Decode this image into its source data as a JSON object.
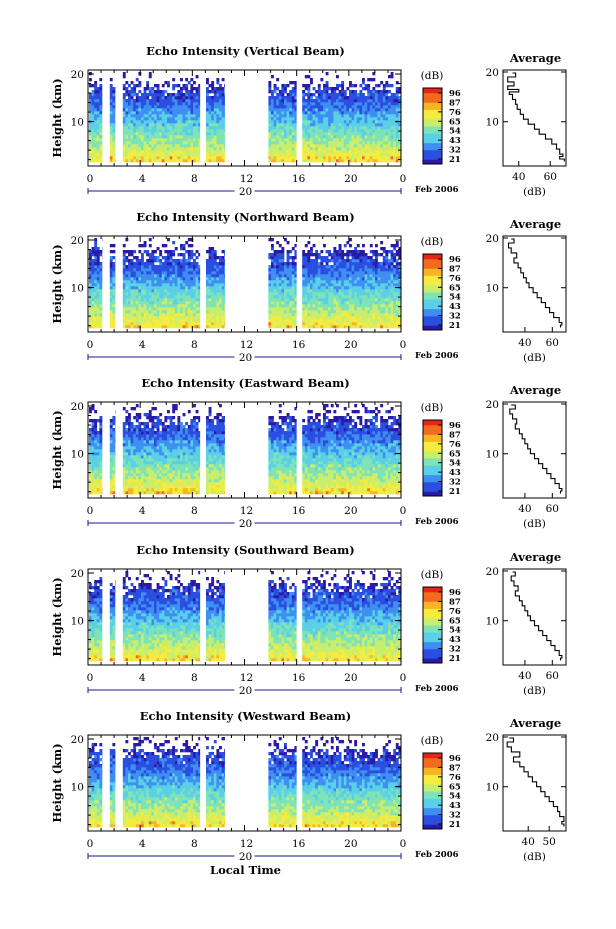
{
  "chart_data": [
    {
      "type": "heatmap",
      "title": "Echo Intensity (Vertical Beam)",
      "ylabel": "Height (km)",
      "yticks": [
        "20",
        "10"
      ],
      "xticks": [
        "0",
        "4",
        "8",
        "12",
        "16",
        "20",
        "0"
      ],
      "date_label": "20",
      "month_label": "Feb 2006",
      "colorbar": {
        "unit": "(dB)",
        "ticks": [
          "96",
          "87",
          "76",
          "65",
          "54",
          "43",
          "32",
          "21"
        ]
      },
      "data_gaps_hours": [
        [
          1.1,
          1.5
        ],
        [
          2.1,
          2.5
        ],
        [
          8.6,
          9.0
        ],
        [
          10.5,
          13.7
        ],
        [
          16.0,
          16.3
        ]
      ],
      "profile": {
        "title": "Average",
        "xlabel": "(dB)",
        "xticks": [
          "40",
          "60"
        ],
        "yticks": [
          "20",
          "10"
        ],
        "xlim": [
          30,
          70
        ],
        "ylim": [
          1.5,
          20
        ],
        "heights_km": [
          19.8,
          19.0,
          18.0,
          17.2,
          16.5,
          16.0,
          15.5,
          14.5,
          13.5,
          12.5,
          11.5,
          10.5,
          9.5,
          8.5,
          7.5,
          6.5,
          5.5,
          4.5,
          3.5,
          3.0,
          2.5,
          2.0
        ],
        "db": [
          36,
          38,
          33,
          37,
          33,
          40,
          34,
          36,
          38,
          39,
          41,
          43,
          46,
          50,
          53,
          57,
          61,
          64,
          66,
          68,
          66,
          69
        ]
      }
    },
    {
      "type": "heatmap",
      "title": "Echo Intensity (Northward Beam)",
      "ylabel": "Height (km)",
      "yticks": [
        "20",
        "10"
      ],
      "xticks": [
        "0",
        "4",
        "8",
        "12",
        "16",
        "20",
        "0"
      ],
      "date_label": "20",
      "month_label": "Feb 2006",
      "colorbar": {
        "unit": "(dB)",
        "ticks": [
          "96",
          "87",
          "76",
          "65",
          "54",
          "43",
          "32",
          "21"
        ]
      },
      "data_gaps_hours": [
        [
          1.1,
          1.5
        ],
        [
          2.1,
          2.5
        ],
        [
          8.6,
          9.0
        ],
        [
          10.5,
          13.7
        ],
        [
          16.0,
          16.3
        ]
      ],
      "profile": {
        "title": "Average",
        "xlabel": "(dB)",
        "xticks": [
          "40",
          "60"
        ],
        "yticks": [
          "20",
          "10"
        ],
        "xlim": [
          24,
          70
        ],
        "ylim": [
          1.5,
          20
        ],
        "heights_km": [
          19.8,
          19.0,
          18.0,
          17.0,
          16.0,
          15.0,
          14.0,
          13.0,
          12.0,
          11.0,
          10.0,
          9.0,
          8.0,
          7.0,
          6.0,
          5.0,
          4.0,
          3.0,
          2.5,
          2.0
        ],
        "db": [
          30,
          32,
          28,
          30,
          34,
          32,
          35,
          37,
          39,
          41,
          43,
          46,
          49,
          52,
          55,
          58,
          61,
          65,
          67,
          66
        ]
      }
    },
    {
      "type": "heatmap",
      "title": "Echo Intensity (Eastward Beam)",
      "ylabel": "Height (km)",
      "yticks": [
        "20",
        "10"
      ],
      "xticks": [
        "0",
        "4",
        "8",
        "12",
        "16",
        "20",
        "0"
      ],
      "date_label": "20",
      "month_label": "Feb 2006",
      "colorbar": {
        "unit": "(dB)",
        "ticks": [
          "96",
          "87",
          "76",
          "65",
          "54",
          "43",
          "32",
          "21"
        ]
      },
      "data_gaps_hours": [
        [
          1.1,
          1.5
        ],
        [
          2.1,
          2.5
        ],
        [
          8.6,
          9.0
        ],
        [
          10.5,
          13.7
        ],
        [
          16.0,
          16.3
        ]
      ],
      "profile": {
        "title": "Average",
        "xlabel": "(dB)",
        "xticks": [
          "40",
          "60"
        ],
        "yticks": [
          "20",
          "10"
        ],
        "xlim": [
          24,
          70
        ],
        "ylim": [
          1.5,
          20
        ],
        "heights_km": [
          19.8,
          19.0,
          18.0,
          17.0,
          16.0,
          15.0,
          14.0,
          13.0,
          12.0,
          11.0,
          10.0,
          9.0,
          8.0,
          7.0,
          6.0,
          5.0,
          4.0,
          3.0,
          2.5,
          2.0
        ],
        "db": [
          30,
          33,
          29,
          31,
          34,
          33,
          36,
          38,
          40,
          42,
          44,
          47,
          50,
          53,
          56,
          59,
          62,
          65,
          67,
          66
        ]
      }
    },
    {
      "type": "heatmap",
      "title": "Echo Intensity (Southward Beam)",
      "ylabel": "Height (km)",
      "yticks": [
        "20",
        "10"
      ],
      "xticks": [
        "0",
        "4",
        "8",
        "12",
        "16",
        "20",
        "0"
      ],
      "date_label": "20",
      "month_label": "Feb 2006",
      "colorbar": {
        "unit": "(dB)",
        "ticks": [
          "96",
          "87",
          "76",
          "65",
          "54",
          "43",
          "32",
          "21"
        ]
      },
      "data_gaps_hours": [
        [
          1.1,
          1.5
        ],
        [
          2.1,
          2.5
        ],
        [
          8.6,
          9.0
        ],
        [
          10.5,
          13.7
        ],
        [
          16.0,
          16.3
        ]
      ],
      "profile": {
        "title": "Average",
        "xlabel": "(dB)",
        "xticks": [
          "40",
          "60"
        ],
        "yticks": [
          "20",
          "10"
        ],
        "xlim": [
          24,
          70
        ],
        "ylim": [
          1.5,
          20
        ],
        "heights_km": [
          19.8,
          19.0,
          18.0,
          17.0,
          16.0,
          15.0,
          14.0,
          13.0,
          12.0,
          11.0,
          10.0,
          9.0,
          8.0,
          7.0,
          6.0,
          5.0,
          4.0,
          3.0,
          2.5,
          2.0
        ],
        "db": [
          31,
          33,
          30,
          32,
          35,
          33,
          36,
          38,
          40,
          42,
          44,
          47,
          50,
          53,
          56,
          59,
          62,
          65,
          67,
          66
        ]
      }
    },
    {
      "type": "heatmap",
      "title": "Echo Intensity (Westward Beam)",
      "ylabel": "Height (km)",
      "yticks": [
        "20",
        "10"
      ],
      "xticks": [
        "0",
        "4",
        "8",
        "12",
        "16",
        "20",
        "0"
      ],
      "date_label": "20",
      "month_label": "Feb 2006",
      "xlabel": "Local Time",
      "colorbar": {
        "unit": "(dB)",
        "ticks": [
          "96",
          "87",
          "76",
          "65",
          "54",
          "43",
          "32",
          "21"
        ]
      },
      "data_gaps_hours": [
        [
          1.1,
          1.5
        ],
        [
          2.1,
          2.5
        ],
        [
          8.6,
          9.0
        ],
        [
          10.5,
          13.7
        ],
        [
          16.0,
          16.3
        ]
      ],
      "profile": {
        "title": "Average",
        "xlabel": "(dB)",
        "xticks": [
          "40",
          "50"
        ],
        "yticks": [
          "20",
          "10"
        ],
        "xlim": [
          28,
          58
        ],
        "ylim": [
          1.5,
          20
        ],
        "heights_km": [
          19.8,
          19.0,
          18.0,
          17.0,
          16.0,
          15.0,
          14.0,
          13.0,
          12.0,
          11.0,
          10.0,
          9.0,
          8.0,
          7.0,
          6.0,
          5.0,
          4.0,
          3.0,
          2.5,
          2.0
        ],
        "db": [
          31,
          33,
          30,
          32,
          36,
          33,
          36,
          38,
          40,
          42,
          44,
          46,
          48,
          50,
          52,
          54,
          55,
          57,
          56,
          57
        ]
      }
    }
  ],
  "colors": {
    "scale": [
      "#2a1aa8",
      "#2a4fe0",
      "#3f8ff2",
      "#5ad0e8",
      "#7fe3b8",
      "#c9ee6e",
      "#f6ec3e",
      "#f9b425",
      "#f46a1c",
      "#e32618"
    ]
  }
}
